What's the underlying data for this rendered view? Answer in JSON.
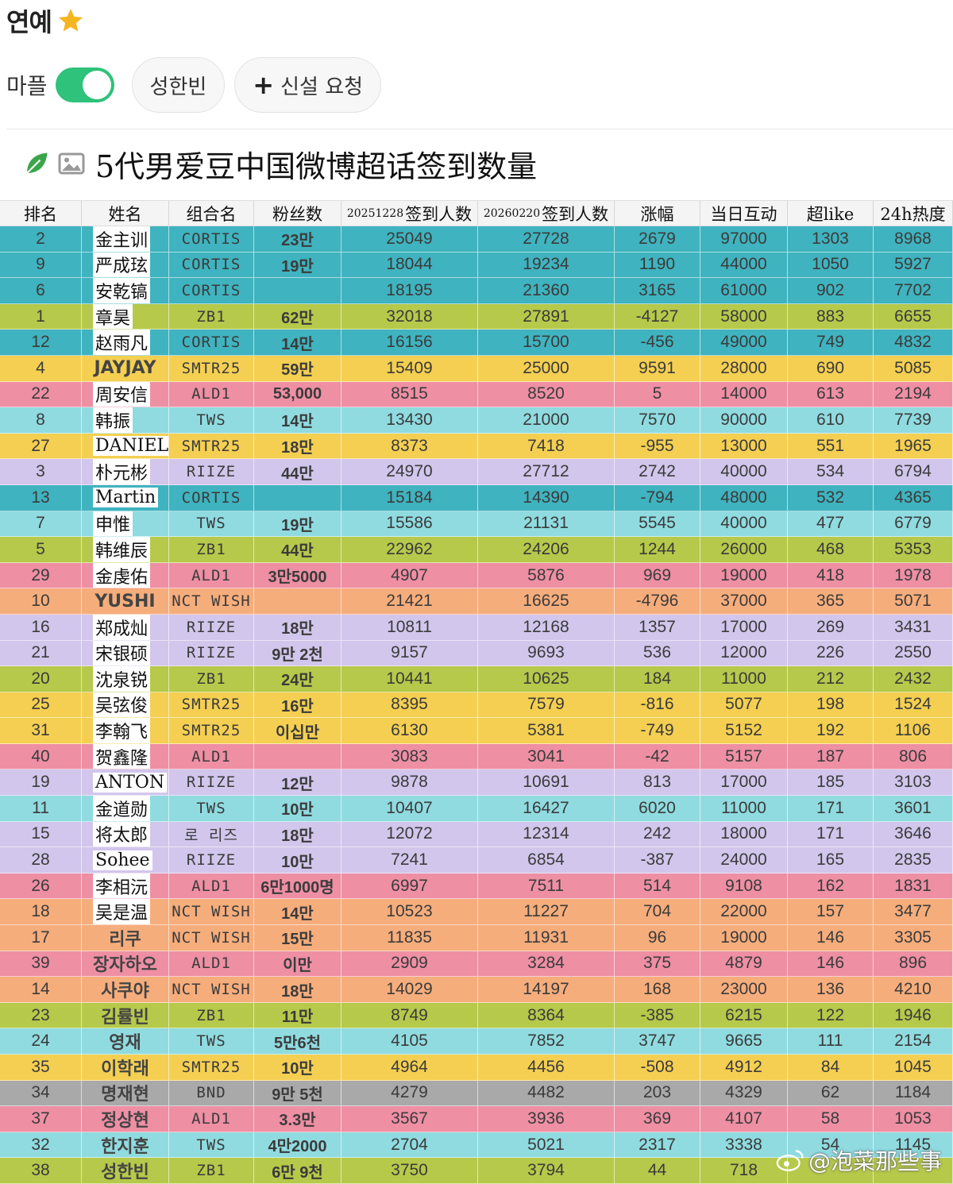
{
  "header": {
    "title": "연예",
    "icon": "star-icon",
    "star_color": "#f5b51f",
    "toggle_label": "마플",
    "toggle_on": true,
    "toggle_color": "#2fc27a",
    "chips": [
      {
        "label": "성한빈"
      },
      {
        "label": "신설 요청",
        "icon": "plus-icon"
      }
    ]
  },
  "post": {
    "title": "5代男爱豆中国微博超话签到数量"
  },
  "table": {
    "headers": {
      "rank": "排名",
      "name": "姓名",
      "group": "组合名",
      "fans": "粉丝数",
      "d1_date": "20251228",
      "d1_label": "签到人数",
      "d2_date": "20260220",
      "d2_label": "签到人数",
      "increase": "涨幅",
      "interaction": "当日互动",
      "superlike": "超like",
      "heat": "24h热度"
    },
    "rows": [
      {
        "rank": "2",
        "name": "金主训",
        "group": "CORTIS",
        "fans": "23만",
        "d1": "25049",
        "d2": "27728",
        "inc": "2679",
        "inter": "97000",
        "like": "1303",
        "hot": "8968",
        "color": "#3fb3bf"
      },
      {
        "rank": "9",
        "name": "严成玹",
        "group": "CORTIS",
        "fans": "19만",
        "d1": "18044",
        "d2": "19234",
        "inc": "1190",
        "inter": "44000",
        "like": "1050",
        "hot": "5927",
        "color": "#3fb3bf"
      },
      {
        "rank": "6",
        "name": "安乾镐",
        "group": "CORTIS",
        "fans": "",
        "d1": "18195",
        "d2": "21360",
        "inc": "3165",
        "inter": "61000",
        "like": "902",
        "hot": "7702",
        "color": "#3fb3bf"
      },
      {
        "rank": "1",
        "name": "章昊",
        "group": "ZB1",
        "fans": "62만",
        "d1": "32018",
        "d2": "27891",
        "inc": "-4127",
        "inter": "58000",
        "like": "883",
        "hot": "6655",
        "color": "#b6c94a"
      },
      {
        "rank": "12",
        "name": "赵雨凡",
        "group": "CORTIS",
        "fans": "14만",
        "d1": "16156",
        "d2": "15700",
        "inc": "-456",
        "inter": "49000",
        "like": "749",
        "hot": "4832",
        "color": "#3fb3bf"
      },
      {
        "rank": "4",
        "name": "JAYJAY",
        "group": "SMTR25",
        "fans": "59만",
        "d1": "15409",
        "d2": "25000",
        "inc": "9591",
        "inter": "28000",
        "like": "690",
        "hot": "5085",
        "color": "#f4cf52",
        "ko": true
      },
      {
        "rank": "22",
        "name": "周安信",
        "group": "ALD1",
        "fans": "53,000",
        "d1": "8515",
        "d2": "8520",
        "inc": "5",
        "inter": "14000",
        "like": "613",
        "hot": "2194",
        "color": "#ee8fa4"
      },
      {
        "rank": "8",
        "name": "韩振",
        "group": "TWS",
        "fans": "14만",
        "d1": "13430",
        "d2": "21000",
        "inc": "7570",
        "inter": "90000",
        "like": "610",
        "hot": "7739",
        "color": "#8fdbe0"
      },
      {
        "rank": "27",
        "name": "DANIEL",
        "group": "SMTR25",
        "fans": "18만",
        "d1": "8373",
        "d2": "7418",
        "inc": "-955",
        "inter": "13000",
        "like": "551",
        "hot": "1965",
        "color": "#f4cf52"
      },
      {
        "rank": "3",
        "name": "朴元彬",
        "group": "RIIZE",
        "fans": "44만",
        "d1": "24970",
        "d2": "27712",
        "inc": "2742",
        "inter": "40000",
        "like": "534",
        "hot": "6794",
        "color": "#d2c6ec"
      },
      {
        "rank": "13",
        "name": "Martin",
        "group": "CORTIS",
        "fans": "",
        "d1": "15184",
        "d2": "14390",
        "inc": "-794",
        "inter": "48000",
        "like": "532",
        "hot": "4365",
        "color": "#3fb3bf"
      },
      {
        "rank": "7",
        "name": "申惟",
        "group": "TWS",
        "fans": "19만",
        "d1": "15586",
        "d2": "21131",
        "inc": "5545",
        "inter": "40000",
        "like": "477",
        "hot": "6779",
        "color": "#8fdbe0"
      },
      {
        "rank": "5",
        "name": "韩维辰",
        "group": "ZB1",
        "fans": "44만",
        "d1": "22962",
        "d2": "24206",
        "inc": "1244",
        "inter": "26000",
        "like": "468",
        "hot": "5353",
        "color": "#b6c94a"
      },
      {
        "rank": "29",
        "name": "金虔佑",
        "group": "ALD1",
        "fans": "3만5000",
        "d1": "4907",
        "d2": "5876",
        "inc": "969",
        "inter": "19000",
        "like": "418",
        "hot": "1978",
        "color": "#ee8fa4"
      },
      {
        "rank": "10",
        "name": "YUSHI",
        "group": "NCT WISH",
        "fans": "",
        "d1": "21421",
        "d2": "16625",
        "inc": "-4796",
        "inter": "37000",
        "like": "365",
        "hot": "5071",
        "color": "#f6ad7c",
        "ko": true
      },
      {
        "rank": "16",
        "name": "郑成灿",
        "group": "RIIZE",
        "fans": "18만",
        "d1": "10811",
        "d2": "12168",
        "inc": "1357",
        "inter": "17000",
        "like": "269",
        "hot": "3431",
        "color": "#d2c6ec"
      },
      {
        "rank": "21",
        "name": "宋银硕",
        "group": "RIIZE",
        "fans": "9만 2천",
        "d1": "9157",
        "d2": "9693",
        "inc": "536",
        "inter": "12000",
        "like": "226",
        "hot": "2550",
        "color": "#d2c6ec"
      },
      {
        "rank": "20",
        "name": "沈泉锐",
        "group": "ZB1",
        "fans": "24만",
        "d1": "10441",
        "d2": "10625",
        "inc": "184",
        "inter": "11000",
        "like": "212",
        "hot": "2432",
        "color": "#b6c94a"
      },
      {
        "rank": "25",
        "name": "吴弦俊",
        "group": "SMTR25",
        "fans": "16만",
        "d1": "8395",
        "d2": "7579",
        "inc": "-816",
        "inter": "5077",
        "like": "198",
        "hot": "1524",
        "color": "#f4cf52"
      },
      {
        "rank": "31",
        "name": "李翰飞",
        "group": "SMTR25",
        "fans": "이십만",
        "d1": "6130",
        "d2": "5381",
        "inc": "-749",
        "inter": "5152",
        "like": "192",
        "hot": "1106",
        "color": "#f4cf52"
      },
      {
        "rank": "40",
        "name": "贺鑫隆",
        "group": "ALD1",
        "fans": "",
        "d1": "3083",
        "d2": "3041",
        "inc": "-42",
        "inter": "5157",
        "like": "187",
        "hot": "806",
        "color": "#ee8fa4"
      },
      {
        "rank": "19",
        "name": "ANTON",
        "group": "RIIZE",
        "fans": "12만",
        "d1": "9878",
        "d2": "10691",
        "inc": "813",
        "inter": "17000",
        "like": "185",
        "hot": "3103",
        "color": "#d2c6ec"
      },
      {
        "rank": "11",
        "name": "金道勋",
        "group": "TWS",
        "fans": "10만",
        "d1": "10407",
        "d2": "16427",
        "inc": "6020",
        "inter": "11000",
        "like": "171",
        "hot": "3601",
        "color": "#8fdbe0"
      },
      {
        "rank": "15",
        "name": "将太郎",
        "group": "로 리즈",
        "fans": "18만",
        "d1": "12072",
        "d2": "12314",
        "inc": "242",
        "inter": "18000",
        "like": "171",
        "hot": "3646",
        "color": "#d2c6ec"
      },
      {
        "rank": "28",
        "name": "Sohee",
        "group": "RIIZE",
        "fans": "10만",
        "d1": "7241",
        "d2": "6854",
        "inc": "-387",
        "inter": "24000",
        "like": "165",
        "hot": "2835",
        "color": "#d2c6ec"
      },
      {
        "rank": "26",
        "name": "李相沅",
        "group": "ALD1",
        "fans": "6만1000명",
        "d1": "6997",
        "d2": "7511",
        "inc": "514",
        "inter": "9108",
        "like": "162",
        "hot": "1831",
        "color": "#ee8fa4"
      },
      {
        "rank": "18",
        "name": "吴是温",
        "group": "NCT WISH",
        "fans": "14만",
        "d1": "10523",
        "d2": "11227",
        "inc": "704",
        "inter": "22000",
        "like": "157",
        "hot": "3477",
        "color": "#f6ad7c"
      },
      {
        "rank": "17",
        "name": "리쿠",
        "group": "NCT WISH",
        "fans": "15만",
        "d1": "11835",
        "d2": "11931",
        "inc": "96",
        "inter": "19000",
        "like": "146",
        "hot": "3305",
        "color": "#f6ad7c",
        "ko": true
      },
      {
        "rank": "39",
        "name": "장자하오",
        "group": "ALD1",
        "fans": "이만",
        "d1": "2909",
        "d2": "3284",
        "inc": "375",
        "inter": "4879",
        "like": "146",
        "hot": "896",
        "color": "#ee8fa4",
        "ko": true
      },
      {
        "rank": "14",
        "name": "사쿠야",
        "group": "NCT WISH",
        "fans": "18만",
        "d1": "14029",
        "d2": "14197",
        "inc": "168",
        "inter": "23000",
        "like": "136",
        "hot": "4210",
        "color": "#f6ad7c",
        "ko": true
      },
      {
        "rank": "23",
        "name": "김률빈",
        "group": "ZB1",
        "fans": "11만",
        "d1": "8749",
        "d2": "8364",
        "inc": "-385",
        "inter": "6215",
        "like": "122",
        "hot": "1946",
        "color": "#b6c94a",
        "ko": true
      },
      {
        "rank": "24",
        "name": "영재",
        "group": "TWS",
        "fans": "5만6천",
        "d1": "4105",
        "d2": "7852",
        "inc": "3747",
        "inter": "9665",
        "like": "111",
        "hot": "2154",
        "color": "#8fdbe0",
        "ko": true
      },
      {
        "rank": "35",
        "name": "이학래",
        "group": "SMTR25",
        "fans": "10만",
        "d1": "4964",
        "d2": "4456",
        "inc": "-508",
        "inter": "4912",
        "like": "84",
        "hot": "1045",
        "color": "#f4cf52",
        "ko": true
      },
      {
        "rank": "34",
        "name": "명재현",
        "group": "BND",
        "fans": "9만 5천",
        "d1": "4279",
        "d2": "4482",
        "inc": "203",
        "inter": "4329",
        "like": "62",
        "hot": "1184",
        "color": "#a9a9a9",
        "ko": true
      },
      {
        "rank": "37",
        "name": "정상현",
        "group": "ALD1",
        "fans": "3.3만",
        "d1": "3567",
        "d2": "3936",
        "inc": "369",
        "inter": "4107",
        "like": "58",
        "hot": "1053",
        "color": "#ee8fa4",
        "ko": true
      },
      {
        "rank": "32",
        "name": "한지훈",
        "group": "TWS",
        "fans": "4만2000",
        "d1": "2704",
        "d2": "5021",
        "inc": "2317",
        "inter": "3338",
        "like": "54",
        "hot": "1145",
        "color": "#8fdbe0",
        "ko": true
      },
      {
        "rank": "38",
        "name": "성한빈",
        "group": "ZB1",
        "fans": "6만 9천",
        "d1": "3750",
        "d2": "3794",
        "inc": "44",
        "inter": "718",
        "like": "",
        "hot": "",
        "color": "#b6c94a",
        "ko": true
      }
    ]
  },
  "watermark": {
    "text": "@泡菜那些事",
    "icon": "weibo-icon"
  }
}
